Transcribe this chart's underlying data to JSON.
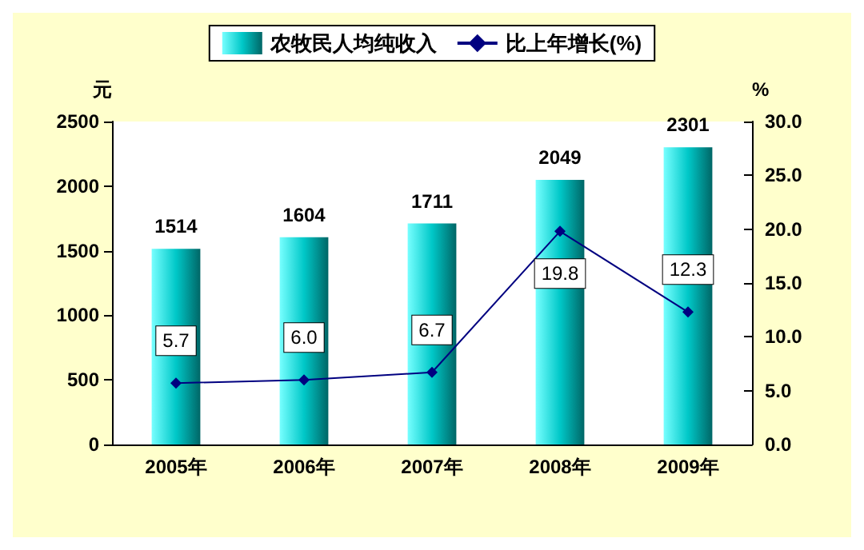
{
  "chart_data": {
    "type": "bar",
    "categories": [
      "2005年",
      "2006年",
      "2007年",
      "2008年",
      "2009年"
    ],
    "series": [
      {
        "name": "农牧民人均纯收入",
        "color": "#00c8c8",
        "values": [
          1514,
          1604,
          1711,
          2049,
          2301
        ]
      },
      {
        "name": "比上年增长(%)",
        "type": "line",
        "axis": "y2",
        "color": "#000080",
        "values": [
          5.7,
          6.0,
          6.7,
          19.8,
          12.3
        ],
        "value_labels": [
          "5.7",
          "6.0",
          "6.7",
          "19.8",
          "12.3"
        ]
      }
    ],
    "ylabel": "元",
    "y2label": "%",
    "ylim": [
      0,
      2500
    ],
    "yticks": [
      0,
      500,
      1000,
      1500,
      2000,
      2500
    ],
    "y2lim": [
      0,
      30
    ],
    "y2ticks": [
      {
        "value": 0,
        "label": "0.0"
      },
      {
        "value": 5,
        "label": "5.0"
      },
      {
        "value": 10,
        "label": "10.0"
      },
      {
        "value": 15,
        "label": "15.0"
      },
      {
        "value": 20,
        "label": "20.0"
      },
      {
        "value": 25,
        "label": "25.0"
      },
      {
        "value": 30,
        "label": "30.0"
      }
    ],
    "data_labels": true,
    "legend": "top",
    "grid": false,
    "marker": "diamond",
    "line_style": "solid"
  }
}
